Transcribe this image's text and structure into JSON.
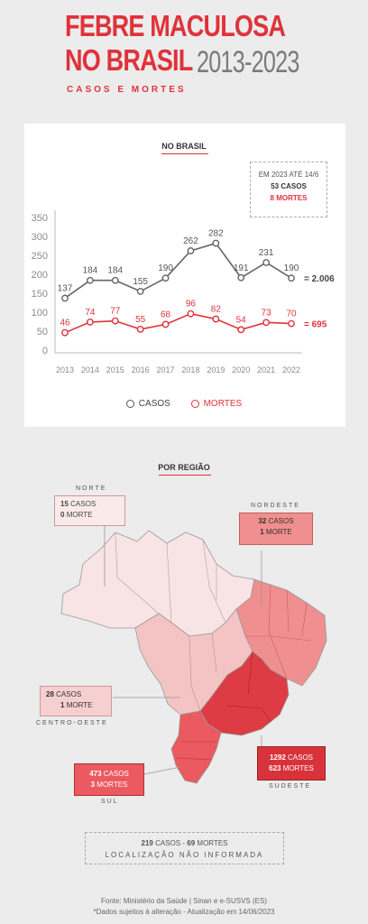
{
  "header": {
    "title_line1": "FEBRE MACULOSA",
    "title_line2": "NO BRASIL",
    "title_years": "2013-2023",
    "subtitle": "CASOS E MORTES"
  },
  "chart_data": {
    "type": "line",
    "title": "NO BRASIL",
    "categories": [
      "2013",
      "2014",
      "2015",
      "2016",
      "2017",
      "2018",
      "2019",
      "2020",
      "2021",
      "2022"
    ],
    "series": [
      {
        "name": "CASOS",
        "values": [
          137,
          184,
          184,
          155,
          190,
          262,
          282,
          191,
          231,
          190
        ],
        "total": "= 2.006",
        "color": "#666666"
      },
      {
        "name": "MORTES",
        "values": [
          46,
          74,
          77,
          55,
          68,
          96,
          82,
          54,
          73,
          70
        ],
        "total": "= 695",
        "color": "#e0323a"
      }
    ],
    "yticks": [
      "0",
      "50",
      "100",
      "150",
      "200",
      "250",
      "300",
      "350"
    ],
    "ylim": [
      0,
      350
    ],
    "grid": false,
    "legend": "bottom",
    "note": {
      "line1": "EM 2023 ATÉ 14/6",
      "line2": "53 CASOS",
      "line3": "8 MORTES"
    }
  },
  "regions": {
    "title": "POR REGIÃO",
    "norte": {
      "name": "NORTE",
      "casos": "15",
      "casos_label": "CASOS",
      "mortes": "0",
      "mortes_label": "MORTE"
    },
    "nordeste": {
      "name": "NORDESTE",
      "casos": "32",
      "casos_label": "CASOS",
      "mortes": "1",
      "mortes_label": "MORTE"
    },
    "centro_oeste": {
      "name": "CENTRO-OESTE",
      "casos": "28",
      "casos_label": "CASOS",
      "mortes": "1",
      "mortes_label": "MORTE"
    },
    "sudeste": {
      "name": "SUDESTE",
      "casos": "1292",
      "casos_label": "CASOS",
      "mortes": "623",
      "mortes_label": "MORTES"
    },
    "sul": {
      "name": "SUL",
      "casos": "473",
      "casos_label": "CASOS",
      "mortes": "3",
      "mortes_label": "MORTES"
    }
  },
  "unknown": {
    "casos": "219",
    "casos_label": "CASOS",
    "sep": "-",
    "mortes": "69",
    "mortes_label": "MORTES",
    "label": "LOCALIZAÇÃO NÃO INFORMADA"
  },
  "footer": {
    "line1": "Fonte: Ministério da Saúde | Sinan e e-SUSVS (ES)",
    "line2": "*Dados sujeitos à alteração - Atualização em 14/06/2023"
  },
  "colors": {
    "accent": "#e0323a",
    "gray": "#7b7b7b",
    "norte": "#f8e4e4",
    "nordeste": "#ef8f8f",
    "centro_oeste": "#f4c4c4",
    "sudeste": "#de3c44",
    "sul": "#ea5a60"
  }
}
